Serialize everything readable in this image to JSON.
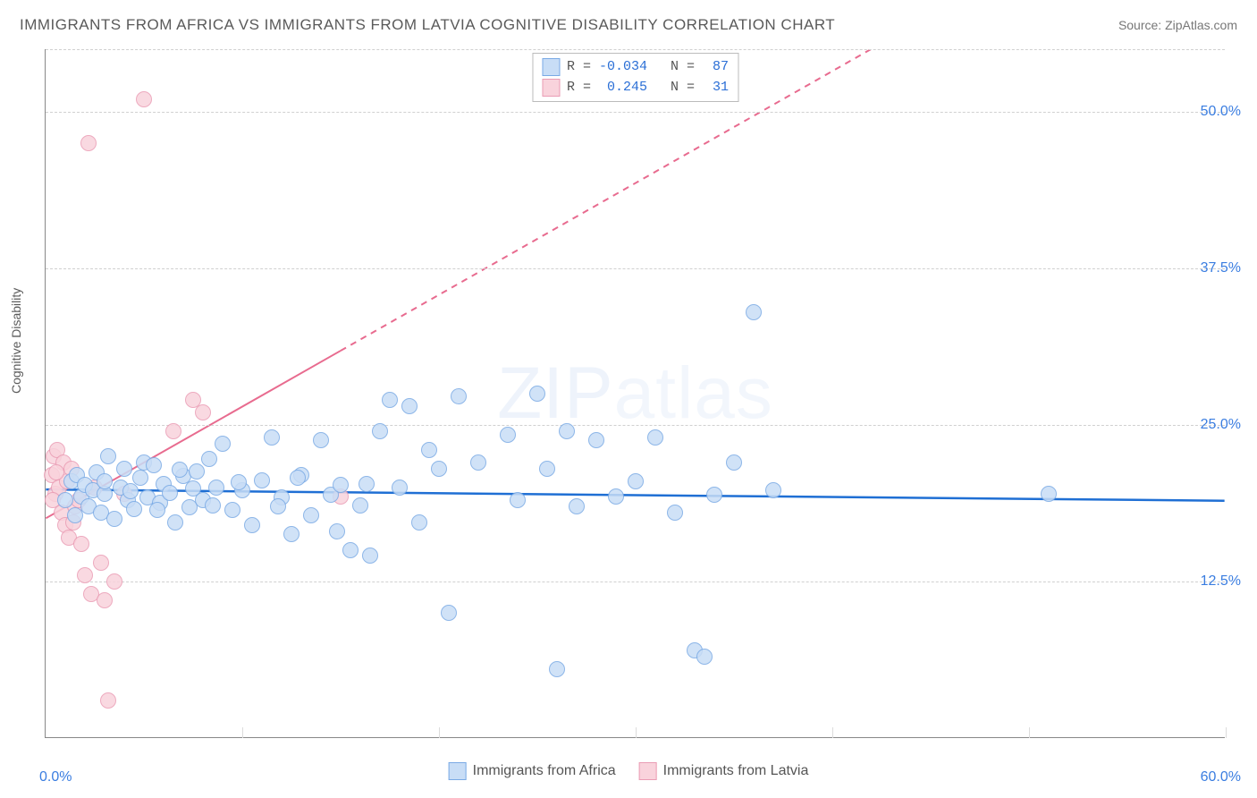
{
  "title": "IMMIGRANTS FROM AFRICA VS IMMIGRANTS FROM LATVIA COGNITIVE DISABILITY CORRELATION CHART",
  "source_label": "Source: ",
  "source_name": "ZipAtlas.com",
  "y_axis_label": "Cognitive Disability",
  "watermark_a": "ZIP",
  "watermark_b": "atlas",
  "chart": {
    "type": "scatter",
    "xlim": [
      0,
      60
    ],
    "ylim": [
      0,
      55
    ],
    "x_ticks": [
      0,
      10,
      20,
      30,
      40,
      50,
      60
    ],
    "x_tick_labels": {
      "0": "0.0%",
      "60": "60.0%"
    },
    "y_ticks": [
      12.5,
      25.0,
      37.5,
      50.0
    ],
    "y_tick_labels": [
      "12.5%",
      "25.0%",
      "37.5%",
      "50.0%"
    ],
    "grid_color": "#d0d0d0",
    "background_color": "#ffffff",
    "series": [
      {
        "name": "Immigrants from Africa",
        "marker_fill": "#c8ddf6",
        "marker_stroke": "#7aaae5",
        "marker_opacity": 0.85,
        "marker_radius": 9,
        "trend_color": "#1f6fd4",
        "trend_width": 2.5,
        "trend_dash": "none",
        "trend": {
          "x1": 0,
          "y1": 19.8,
          "x2": 60,
          "y2": 18.9
        },
        "R": "-0.034",
        "N": "87",
        "points": [
          [
            1.0,
            19.0
          ],
          [
            1.3,
            20.5
          ],
          [
            1.5,
            17.8
          ],
          [
            1.6,
            21.0
          ],
          [
            1.8,
            19.3
          ],
          [
            2.0,
            20.2
          ],
          [
            2.2,
            18.5
          ],
          [
            2.4,
            19.8
          ],
          [
            2.6,
            21.2
          ],
          [
            2.8,
            18.0
          ],
          [
            3.0,
            19.5
          ],
          [
            3.2,
            22.5
          ],
          [
            3.5,
            17.5
          ],
          [
            3.8,
            20.0
          ],
          [
            4.0,
            21.5
          ],
          [
            4.2,
            19.0
          ],
          [
            4.5,
            18.3
          ],
          [
            4.8,
            20.8
          ],
          [
            5.0,
            22.0
          ],
          [
            5.2,
            19.2
          ],
          [
            5.5,
            21.8
          ],
          [
            5.8,
            18.8
          ],
          [
            6.0,
            20.3
          ],
          [
            6.3,
            19.6
          ],
          [
            6.6,
            17.2
          ],
          [
            7.0,
            20.9
          ],
          [
            7.3,
            18.4
          ],
          [
            7.7,
            21.3
          ],
          [
            8.0,
            19.0
          ],
          [
            8.3,
            22.3
          ],
          [
            8.7,
            20.0
          ],
          [
            9.0,
            23.5
          ],
          [
            9.5,
            18.2
          ],
          [
            10.0,
            19.8
          ],
          [
            10.5,
            17.0
          ],
          [
            11.0,
            20.6
          ],
          [
            11.5,
            24.0
          ],
          [
            12.0,
            19.2
          ],
          [
            12.5,
            16.3
          ],
          [
            13.0,
            21.0
          ],
          [
            13.5,
            17.8
          ],
          [
            14.0,
            23.8
          ],
          [
            14.5,
            19.4
          ],
          [
            15.0,
            20.2
          ],
          [
            15.5,
            15.0
          ],
          [
            16.0,
            18.6
          ],
          [
            16.5,
            14.6
          ],
          [
            17.0,
            24.5
          ],
          [
            17.5,
            27.0
          ],
          [
            18.0,
            20.0
          ],
          [
            18.5,
            26.5
          ],
          [
            19.0,
            17.2
          ],
          [
            20.0,
            21.5
          ],
          [
            20.5,
            10.0
          ],
          [
            21.0,
            27.3
          ],
          [
            22.0,
            22.0
          ],
          [
            23.5,
            24.2
          ],
          [
            24.0,
            19.0
          ],
          [
            25.0,
            27.5
          ],
          [
            25.5,
            21.5
          ],
          [
            26.0,
            5.5
          ],
          [
            26.5,
            24.5
          ],
          [
            27.0,
            18.5
          ],
          [
            28.0,
            23.8
          ],
          [
            29.0,
            19.3
          ],
          [
            30.0,
            20.5
          ],
          [
            31.0,
            24.0
          ],
          [
            32.0,
            18.0
          ],
          [
            33.0,
            7.0
          ],
          [
            33.5,
            6.5
          ],
          [
            34.0,
            19.4
          ],
          [
            35.0,
            22.0
          ],
          [
            36.0,
            34.0
          ],
          [
            37.0,
            19.8
          ],
          [
            51.0,
            19.5
          ],
          [
            3.0,
            20.5
          ],
          [
            4.3,
            19.7
          ],
          [
            5.7,
            18.2
          ],
          [
            6.8,
            21.4
          ],
          [
            7.5,
            19.9
          ],
          [
            8.5,
            18.6
          ],
          [
            9.8,
            20.4
          ],
          [
            11.8,
            18.5
          ],
          [
            12.8,
            20.8
          ],
          [
            14.8,
            16.5
          ],
          [
            16.3,
            20.3
          ],
          [
            19.5,
            23.0
          ]
        ]
      },
      {
        "name": "Immigrants from Latvia",
        "marker_fill": "#f9d3dc",
        "marker_stroke": "#ea9cb4",
        "marker_opacity": 0.85,
        "marker_radius": 9,
        "trend_color": "#e86b8f",
        "trend_width": 2,
        "trend_dash": "solid_then_dash",
        "trend_solid_until_x": 15,
        "trend": {
          "x1": 0,
          "y1": 17.5,
          "x2": 42,
          "y2": 55
        },
        "R": "0.245",
        "N": "31",
        "points": [
          [
            0.3,
            21.0
          ],
          [
            0.4,
            22.5
          ],
          [
            0.5,
            19.5
          ],
          [
            0.6,
            23.0
          ],
          [
            0.7,
            20.0
          ],
          [
            0.8,
            18.0
          ],
          [
            0.9,
            22.0
          ],
          [
            1.0,
            17.0
          ],
          [
            1.1,
            20.5
          ],
          [
            1.2,
            16.0
          ],
          [
            1.3,
            21.5
          ],
          [
            1.5,
            18.5
          ],
          [
            1.7,
            19.0
          ],
          [
            2.0,
            13.0
          ],
          [
            2.3,
            11.5
          ],
          [
            2.5,
            20.0
          ],
          [
            2.8,
            14.0
          ],
          [
            3.0,
            11.0
          ],
          [
            3.5,
            12.5
          ],
          [
            4.0,
            19.5
          ],
          [
            5.0,
            51.0
          ],
          [
            2.2,
            47.5
          ],
          [
            6.5,
            24.5
          ],
          [
            7.5,
            27.0
          ],
          [
            8.0,
            26.0
          ],
          [
            3.2,
            3.0
          ],
          [
            15.0,
            19.3
          ],
          [
            1.8,
            15.5
          ],
          [
            1.4,
            17.2
          ],
          [
            0.35,
            19.0
          ],
          [
            0.55,
            21.2
          ]
        ]
      }
    ]
  }
}
